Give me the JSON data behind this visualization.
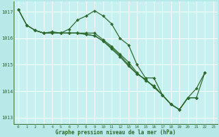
{
  "background_color": "#b8e8e8",
  "plot_bg_color": "#c8f0f0",
  "grid_color": "#ffffff",
  "line_color": "#2d6a2d",
  "title": "Graphe pression niveau de la mer (hPa)",
  "xlim": [
    -0.5,
    23.5
  ],
  "ylim": [
    1012.75,
    1017.4
  ],
  "yticks": [
    1013,
    1014,
    1015,
    1016,
    1017
  ],
  "xtick_labels": [
    "0",
    "1",
    "2",
    "3",
    "4",
    "5",
    "6",
    "7",
    "8",
    "9",
    "10",
    "11",
    "12",
    "13",
    "14",
    "15",
    "16",
    "17",
    "18",
    "19",
    "20",
    "21",
    "22",
    "23"
  ],
  "series": [
    {
      "x": [
        0,
        1,
        2,
        3,
        4,
        5,
        6,
        7,
        8,
        9,
        10,
        11,
        12,
        13,
        14,
        15,
        16,
        17,
        18,
        19,
        20,
        21
      ],
      "y": [
        1017.1,
        1016.5,
        1016.3,
        1016.2,
        1016.25,
        1016.2,
        1016.35,
        1016.7,
        1016.85,
        1017.05,
        1016.85,
        1016.55,
        1016.0,
        1015.75,
        1015.0,
        1014.5,
        1014.5,
        1013.85,
        1013.5,
        1013.3,
        1013.75,
        1013.75
      ]
    },
    {
      "x": [
        0,
        1,
        2,
        3,
        4,
        5,
        6,
        7,
        8,
        9,
        10,
        11,
        12,
        13,
        14,
        15,
        16,
        17,
        18,
        19,
        20,
        21
      ],
      "y": [
        1017.1,
        1016.5,
        1016.3,
        1016.2,
        1016.2,
        1016.2,
        1016.2,
        1016.2,
        1016.2,
        1016.2,
        1015.95,
        1015.7,
        1015.4,
        1015.1,
        1014.7,
        1014.4,
        1014.2,
        1013.85,
        1013.5,
        1013.3,
        1013.75,
        1013.75
      ]
    },
    {
      "x": [
        0,
        1,
        2,
        3,
        4,
        5,
        6,
        7,
        8,
        9,
        10,
        11,
        12,
        13,
        14,
        15,
        16,
        17,
        18,
        19,
        20,
        21,
        22
      ],
      "y": [
        1017.1,
        1016.5,
        1016.3,
        1016.2,
        1016.2,
        1016.2,
        1016.2,
        1016.2,
        1016.15,
        1016.1,
        1015.9,
        1015.65,
        1015.35,
        1015.0,
        1014.65,
        1014.45,
        1014.15,
        1013.85,
        1013.5,
        1013.3,
        1013.75,
        1014.1,
        1014.7
      ]
    },
    {
      "x": [
        2,
        3,
        4,
        5,
        6,
        7,
        8,
        9,
        10,
        11,
        12,
        13,
        14,
        15,
        16,
        17,
        18,
        19,
        20,
        21,
        22
      ],
      "y": [
        1016.3,
        1016.2,
        1016.2,
        1016.2,
        1016.2,
        1016.2,
        1016.15,
        1016.1,
        1015.9,
        1015.6,
        1015.3,
        1014.95,
        1014.65,
        1014.45,
        1014.15,
        1013.85,
        1013.5,
        1013.3,
        1013.75,
        1013.75,
        1014.7
      ]
    }
  ]
}
